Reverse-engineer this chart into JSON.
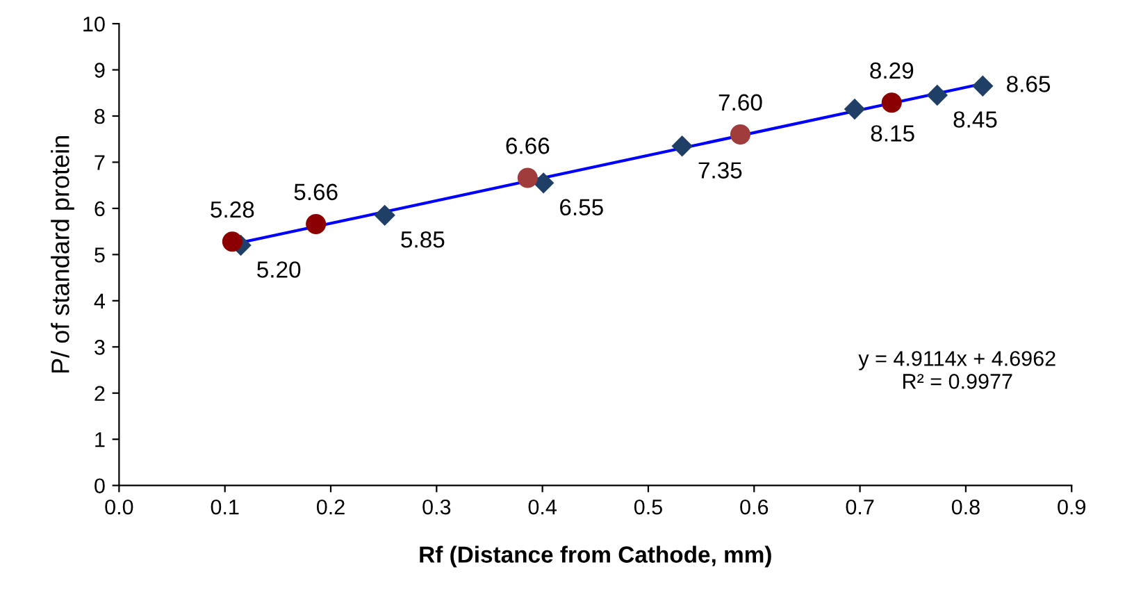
{
  "chart_data": {
    "type": "scatter",
    "xlabel": "Rf (Distance from Cathode, mm)",
    "ylabel": "P/ of standard protein",
    "xlim": [
      0.0,
      0.9
    ],
    "xticks": [
      {
        "value": 0.0,
        "label": "0.0"
      },
      0.1,
      0.2,
      0.3,
      0.4,
      0.5,
      0.6,
      0.7,
      0.8,
      0.9
    ],
    "ylim": [
      0,
      10
    ],
    "yticks": [
      0,
      1,
      2,
      3,
      4,
      5,
      6,
      7,
      8,
      9,
      10
    ],
    "grid": false,
    "legend": false,
    "series": [
      {
        "type": "line",
        "color": "#0000ff",
        "marker": "none",
        "line_style": "solid",
        "x": [
          0.115,
          0.816
        ],
        "values": [
          5.26,
          8.7
        ]
      },
      {
        "color": "#1f3f66",
        "marker": "diamond",
        "x": [
          0.115,
          0.251,
          0.401,
          0.532,
          0.695,
          0.773,
          0.816
        ],
        "values": [
          5.2,
          5.85,
          6.55,
          7.35,
          8.15,
          8.45,
          8.65
        ],
        "value_labels": [
          "5.20",
          "5.85",
          "6.55",
          "7.35",
          "8.15",
          "8.45",
          "8.65"
        ]
      },
      {
        "colors": [
          "#8b0000",
          "#8b0000",
          "#a03c3c",
          "#a03c3c",
          "#8b0000"
        ],
        "marker": "circle",
        "x": [
          0.107,
          0.186,
          0.386,
          0.587,
          0.73
        ],
        "values": [
          5.28,
          5.66,
          6.66,
          7.6,
          8.29
        ],
        "value_labels": [
          "5.28",
          "5.66",
          "6.66",
          "7.60",
          "8.29"
        ]
      }
    ],
    "annotations": [
      "y = 4.9114x + 4.6962\nR² = 0.9977"
    ]
  }
}
